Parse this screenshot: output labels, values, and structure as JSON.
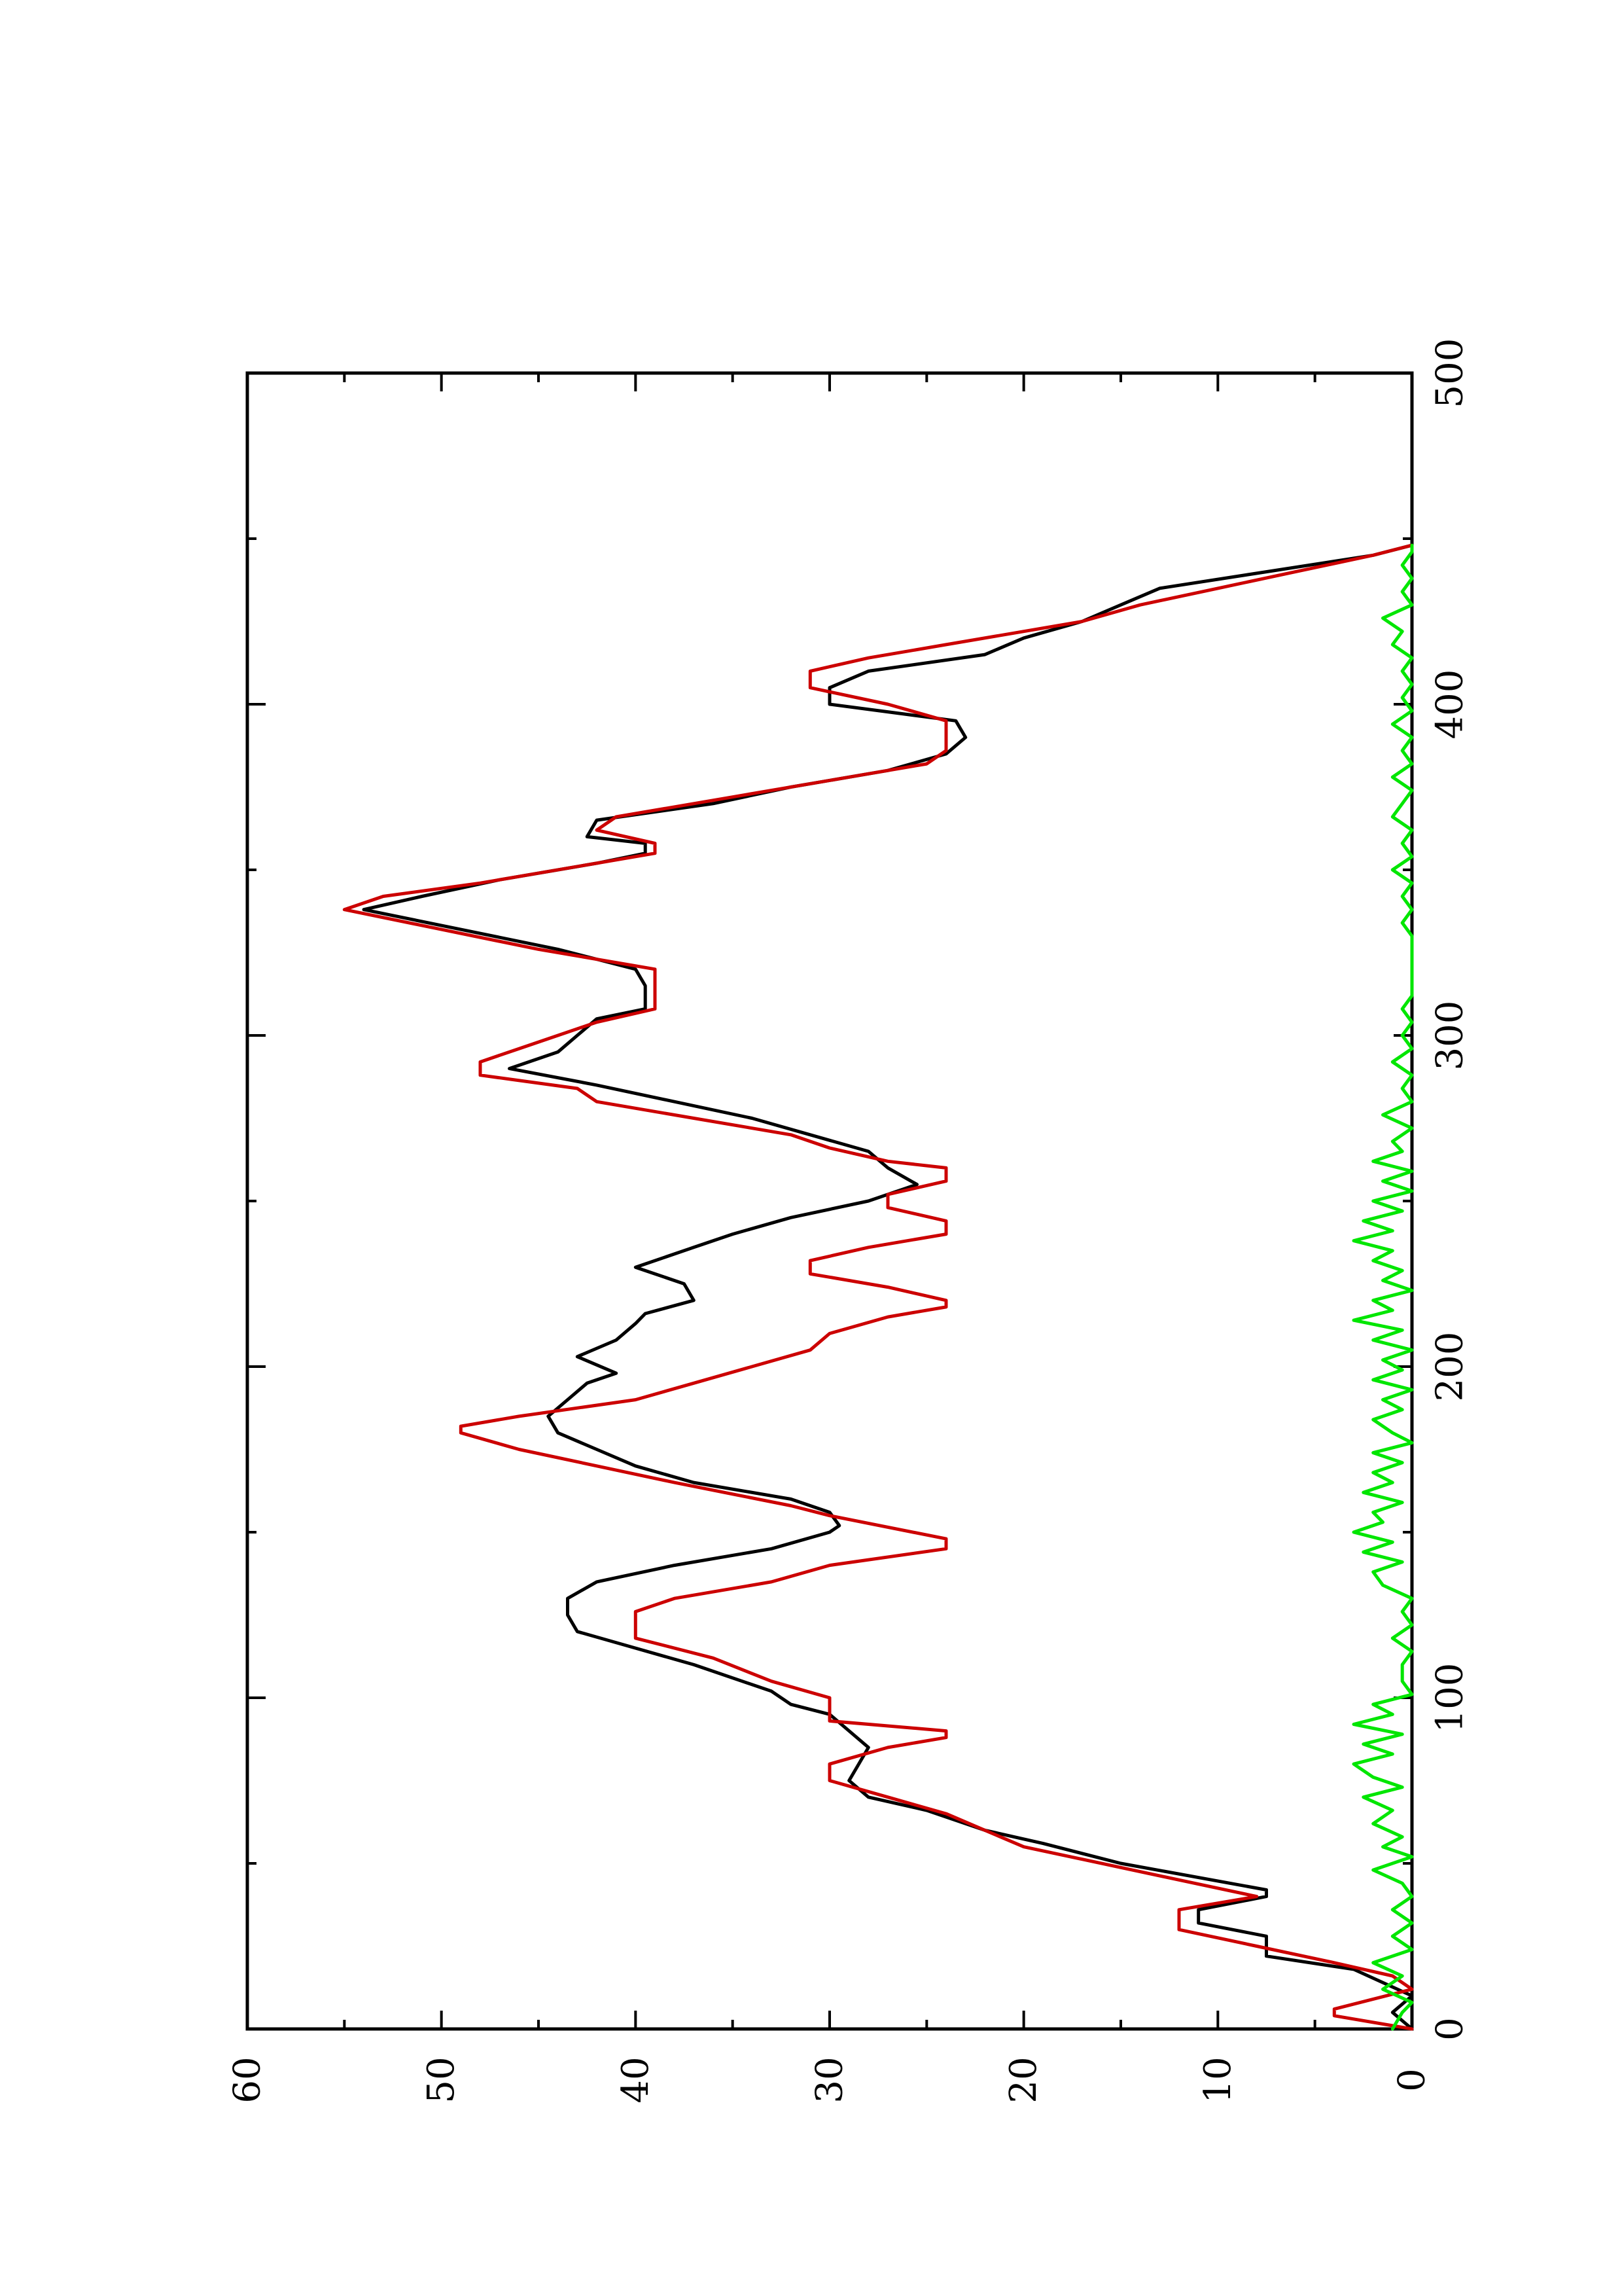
{
  "chart_data": {
    "type": "line",
    "orientation": "rotated 90 degrees counter-clockwise (x axis runs vertically, y axis horizontally)",
    "title": "",
    "xlabel": "",
    "ylabel": "",
    "xlim": [
      0,
      500
    ],
    "ylim": [
      0,
      60
    ],
    "x_ticks": [
      0,
      100,
      200,
      300,
      400,
      500
    ],
    "y_ticks": [
      0,
      10,
      20,
      30,
      40,
      50,
      60
    ],
    "grid": false,
    "legend": "none",
    "series": [
      {
        "color": "#000000",
        "points": [
          [
            0,
            0
          ],
          [
            5,
            1
          ],
          [
            10,
            0
          ],
          [
            18,
            3
          ],
          [
            22,
            7.5
          ],
          [
            28,
            7.5
          ],
          [
            32,
            11
          ],
          [
            36,
            11
          ],
          [
            40,
            7.5
          ],
          [
            42,
            7.5
          ],
          [
            50,
            15
          ],
          [
            56,
            19
          ],
          [
            60,
            22
          ],
          [
            66,
            25
          ],
          [
            70,
            28
          ],
          [
            75,
            29
          ],
          [
            80,
            28.5
          ],
          [
            85,
            28
          ],
          [
            90,
            29
          ],
          [
            95,
            30
          ],
          [
            98,
            32
          ],
          [
            102,
            33
          ],
          [
            110,
            37
          ],
          [
            115,
            40
          ],
          [
            120,
            43
          ],
          [
            125,
            43.5
          ],
          [
            130,
            43.5
          ],
          [
            135,
            42
          ],
          [
            140,
            38
          ],
          [
            145,
            33
          ],
          [
            150,
            30
          ],
          [
            152,
            29.5
          ],
          [
            156,
            30
          ],
          [
            160,
            32
          ],
          [
            165,
            37
          ],
          [
            170,
            40
          ],
          [
            175,
            42
          ],
          [
            180,
            44
          ],
          [
            185,
            44.5
          ],
          [
            190,
            43.5
          ],
          [
            195,
            42.5
          ],
          [
            198,
            41
          ],
          [
            203,
            43
          ],
          [
            208,
            41
          ],
          [
            213,
            40
          ],
          [
            216,
            39.5
          ],
          [
            220,
            37
          ],
          [
            225,
            37.5
          ],
          [
            230,
            40
          ],
          [
            236,
            37
          ],
          [
            240,
            35
          ],
          [
            245,
            32
          ],
          [
            250,
            28
          ],
          [
            255,
            25.5
          ],
          [
            260,
            27
          ],
          [
            265,
            28
          ],
          [
            270,
            31
          ],
          [
            275,
            34
          ],
          [
            280,
            38
          ],
          [
            285,
            42
          ],
          [
            290,
            46.5
          ],
          [
            295,
            44
          ],
          [
            300,
            43
          ],
          [
            305,
            42
          ],
          [
            308,
            39.5
          ],
          [
            315,
            39.5
          ],
          [
            320,
            40
          ],
          [
            326,
            44
          ],
          [
            332,
            49
          ],
          [
            338,
            54
          ],
          [
            342,
            51
          ],
          [
            347,
            47
          ],
          [
            352,
            42
          ],
          [
            355,
            39.5
          ],
          [
            358,
            39.5
          ],
          [
            360,
            42.5
          ],
          [
            365,
            42
          ],
          [
            370,
            36
          ],
          [
            375,
            32
          ],
          [
            380,
            27
          ],
          [
            385,
            24
          ],
          [
            390,
            23
          ],
          [
            395,
            23.5
          ],
          [
            400,
            30
          ],
          [
            405,
            30
          ],
          [
            410,
            28
          ],
          [
            415,
            22
          ],
          [
            420,
            20
          ],
          [
            425,
            17
          ],
          [
            430,
            15
          ],
          [
            435,
            13
          ],
          [
            440,
            7.5
          ],
          [
            445,
            2
          ],
          [
            448,
            0
          ]
        ]
      },
      {
        "color": "#cc0000",
        "points": [
          [
            0,
            0
          ],
          [
            4,
            4
          ],
          [
            6,
            4
          ],
          [
            12,
            0
          ],
          [
            16,
            1
          ],
          [
            20,
            4
          ],
          [
            25,
            8
          ],
          [
            30,
            12
          ],
          [
            32,
            12
          ],
          [
            36,
            12
          ],
          [
            40,
            8
          ],
          [
            45,
            12
          ],
          [
            55,
            20
          ],
          [
            60,
            22
          ],
          [
            65,
            24
          ],
          [
            70,
            27
          ],
          [
            75,
            30
          ],
          [
            80,
            30
          ],
          [
            85,
            27
          ],
          [
            88,
            24
          ],
          [
            90,
            24
          ],
          [
            93,
            30
          ],
          [
            100,
            30
          ],
          [
            105,
            33
          ],
          [
            112,
            36
          ],
          [
            118,
            40
          ],
          [
            122,
            40
          ],
          [
            126,
            40
          ],
          [
            130,
            38
          ],
          [
            135,
            33
          ],
          [
            140,
            30
          ],
          [
            145,
            24
          ],
          [
            148,
            24
          ],
          [
            155,
            30
          ],
          [
            158,
            32
          ],
          [
            165,
            38
          ],
          [
            170,
            42
          ],
          [
            175,
            46
          ],
          [
            180,
            49
          ],
          [
            182,
            49
          ],
          [
            185,
            46
          ],
          [
            190,
            40
          ],
          [
            195,
            37
          ],
          [
            200,
            34
          ],
          [
            205,
            31
          ],
          [
            210,
            30
          ],
          [
            215,
            27
          ],
          [
            218,
            24
          ],
          [
            220,
            24
          ],
          [
            224,
            27
          ],
          [
            228,
            31
          ],
          [
            232,
            31
          ],
          [
            236,
            28
          ],
          [
            240,
            24
          ],
          [
            244,
            24
          ],
          [
            248,
            27
          ],
          [
            252,
            27
          ],
          [
            256,
            24
          ],
          [
            260,
            24
          ],
          [
            262,
            27
          ],
          [
            266,
            30
          ],
          [
            270,
            32
          ],
          [
            275,
            37
          ],
          [
            280,
            42
          ],
          [
            284,
            43
          ],
          [
            288,
            48
          ],
          [
            292,
            48
          ],
          [
            296,
            46
          ],
          [
            300,
            44
          ],
          [
            304,
            42
          ],
          [
            308,
            39
          ],
          [
            315,
            39
          ],
          [
            320,
            39
          ],
          [
            326,
            45
          ],
          [
            332,
            50
          ],
          [
            338,
            55
          ],
          [
            342,
            53
          ],
          [
            346,
            48
          ],
          [
            352,
            42
          ],
          [
            355,
            39
          ],
          [
            358,
            39
          ],
          [
            362,
            42
          ],
          [
            366,
            41
          ],
          [
            372,
            35
          ],
          [
            378,
            29
          ],
          [
            382,
            25
          ],
          [
            386,
            24
          ],
          [
            392,
            24
          ],
          [
            395,
            24
          ],
          [
            400,
            27
          ],
          [
            405,
            31
          ],
          [
            410,
            31
          ],
          [
            414,
            28
          ],
          [
            418,
            24
          ],
          [
            422,
            20
          ],
          [
            425,
            17
          ],
          [
            430,
            14
          ],
          [
            435,
            10
          ],
          [
            440,
            6
          ],
          [
            445,
            2
          ],
          [
            448,
            0
          ]
        ]
      },
      {
        "color": "#00e600",
        "points": [
          [
            0,
            1
          ],
          [
            5,
            0.5
          ],
          [
            8,
            0
          ],
          [
            12,
            1.5
          ],
          [
            16,
            0.5
          ],
          [
            20,
            2
          ],
          [
            24,
            0
          ],
          [
            28,
            1
          ],
          [
            32,
            0
          ],
          [
            36,
            1
          ],
          [
            40,
            0
          ],
          [
            44,
            0.5
          ],
          [
            48,
            2
          ],
          [
            52,
            0
          ],
          [
            55,
            1.5
          ],
          [
            58,
            0.5
          ],
          [
            62,
            2
          ],
          [
            66,
            1
          ],
          [
            70,
            2.5
          ],
          [
            73,
            0.5
          ],
          [
            76,
            2
          ],
          [
            80,
            3
          ],
          [
            83,
            1
          ],
          [
            86,
            2.5
          ],
          [
            89,
            0.5
          ],
          [
            92,
            3
          ],
          [
            95,
            1
          ],
          [
            98,
            2
          ],
          [
            101,
            0
          ],
          [
            105,
            0.5
          ],
          [
            110,
            0.5
          ],
          [
            114,
            0
          ],
          [
            118,
            1
          ],
          [
            122,
            0
          ],
          [
            126,
            0.5
          ],
          [
            130,
            0
          ],
          [
            134,
            1.5
          ],
          [
            138,
            2
          ],
          [
            141,
            0.5
          ],
          [
            144,
            2.5
          ],
          [
            147,
            1
          ],
          [
            150,
            3
          ],
          [
            153,
            1.5
          ],
          [
            156,
            2
          ],
          [
            159,
            0.5
          ],
          [
            162,
            2.5
          ],
          [
            165,
            1
          ],
          [
            168,
            2
          ],
          [
            171,
            0.5
          ],
          [
            174,
            2
          ],
          [
            177,
            0
          ],
          [
            180,
            1
          ],
          [
            184,
            2
          ],
          [
            187,
            0.5
          ],
          [
            190,
            1.5
          ],
          [
            193,
            0
          ],
          [
            196,
            2
          ],
          [
            199,
            0.5
          ],
          [
            202,
            1.5
          ],
          [
            205,
            0
          ],
          [
            208,
            2
          ],
          [
            211,
            0.5
          ],
          [
            214,
            3
          ],
          [
            217,
            1
          ],
          [
            220,
            2
          ],
          [
            223,
            0
          ],
          [
            226,
            1.5
          ],
          [
            229,
            0.5
          ],
          [
            232,
            2
          ],
          [
            235,
            1
          ],
          [
            238,
            3
          ],
          [
            241,
            1
          ],
          [
            244,
            2.5
          ],
          [
            247,
            0.5
          ],
          [
            250,
            2
          ],
          [
            253,
            0
          ],
          [
            256,
            1.5
          ],
          [
            259,
            0
          ],
          [
            262,
            2
          ],
          [
            265,
            0.5
          ],
          [
            268,
            1
          ],
          [
            272,
            0
          ],
          [
            276,
            1.5
          ],
          [
            280,
            0
          ],
          [
            284,
            0.5
          ],
          [
            288,
            0
          ],
          [
            292,
            1
          ],
          [
            296,
            0
          ],
          [
            300,
            0.5
          ],
          [
            304,
            0
          ],
          [
            308,
            0.5
          ],
          [
            312,
            0
          ],
          [
            320,
            0
          ],
          [
            330,
            0
          ],
          [
            334,
            0.5
          ],
          [
            338,
            0
          ],
          [
            342,
            0.5
          ],
          [
            346,
            0
          ],
          [
            350,
            1
          ],
          [
            354,
            0
          ],
          [
            358,
            0.5
          ],
          [
            362,
            0
          ],
          [
            366,
            1
          ],
          [
            370,
            0.5
          ],
          [
            374,
            0
          ],
          [
            378,
            1
          ],
          [
            382,
            0
          ],
          [
            386,
            0.5
          ],
          [
            390,
            0
          ],
          [
            394,
            1
          ],
          [
            398,
            0
          ],
          [
            402,
            0.5
          ],
          [
            406,
            0
          ],
          [
            410,
            0.5
          ],
          [
            414,
            0
          ],
          [
            418,
            1
          ],
          [
            422,
            0.5
          ],
          [
            426,
            1.5
          ],
          [
            430,
            0
          ],
          [
            434,
            0.5
          ],
          [
            438,
            0
          ],
          [
            442,
            0.5
          ],
          [
            446,
            0
          ],
          [
            448,
            0
          ]
        ]
      }
    ]
  }
}
